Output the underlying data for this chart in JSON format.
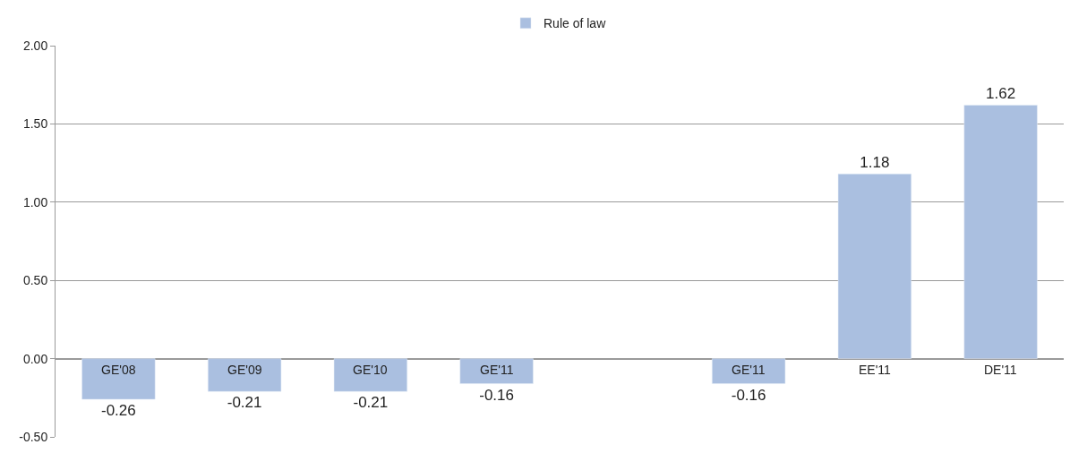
{
  "chart_data": {
    "type": "bar",
    "categories": [
      "GE'08",
      "GE'09",
      "GE'10",
      "GE'11",
      null,
      "GE'11",
      "EE'11",
      "DE'11"
    ],
    "series": [
      {
        "name": "Rule of law",
        "color": "#aabfe0",
        "values": [
          -0.26,
          -0.21,
          -0.21,
          -0.16,
          null,
          -0.16,
          1.18,
          1.62
        ]
      }
    ],
    "ylim": [
      -0.5,
      2.0
    ],
    "yticks": [
      {
        "value": -0.5,
        "label": "-0.50"
      },
      {
        "value": 0,
        "label": "0.00"
      },
      {
        "value": 0.5,
        "label": "0.50"
      },
      {
        "value": 1.0,
        "label": "1.00"
      },
      {
        "value": 1.5,
        "label": "1.50"
      },
      {
        "value": 2.0,
        "label": "2.00"
      }
    ],
    "grid": "y",
    "legend": "top",
    "data_labels": true
  }
}
